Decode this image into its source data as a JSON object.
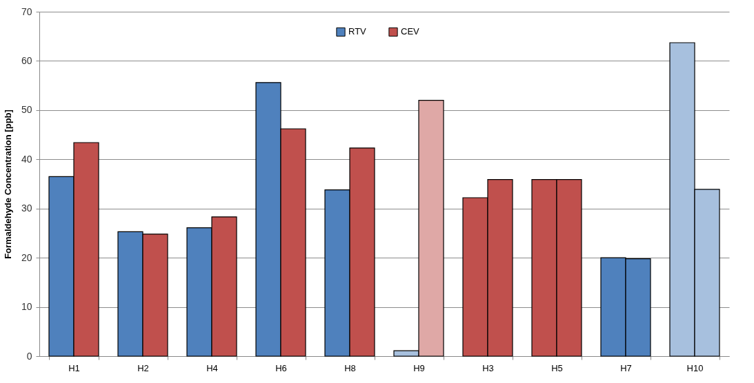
{
  "chart_data": {
    "type": "bar",
    "ylabel": "Formaldehyde Concentration [ppb]",
    "categories": [
      "H1",
      "H2",
      "H4",
      "H6",
      "H8",
      "H9",
      "H3",
      "H5",
      "H7",
      "H10"
    ],
    "series": [
      {
        "name": "RTV",
        "color": "#4f81bd",
        "colors": [
          "#4f81bd",
          "#4f81bd",
          "#4f81bd",
          "#4f81bd",
          "#4f81bd",
          "#a7c0de",
          "#c0504d",
          "#c0504d",
          "#4f81bd",
          "#a7c0de"
        ],
        "values": [
          36.5,
          25.3,
          26.1,
          55.6,
          33.8,
          1.1,
          32.2,
          35.9,
          20.0,
          63.7
        ]
      },
      {
        "name": "CEV",
        "color": "#c0504d",
        "colors": [
          "#c0504d",
          "#c0504d",
          "#c0504d",
          "#c0504d",
          "#c0504d",
          "#dfa8a6",
          "#c0504d",
          "#c0504d",
          "#4f81bd",
          "#a7c0de"
        ],
        "values": [
          43.4,
          24.8,
          28.3,
          46.2,
          42.3,
          52.0,
          35.9,
          35.9,
          19.8,
          33.9
        ]
      }
    ],
    "ylim": [
      0,
      70
    ],
    "yticks": [
      0,
      10,
      20,
      30,
      40,
      50,
      60,
      70
    ],
    "grid": "y",
    "legend": "top"
  }
}
